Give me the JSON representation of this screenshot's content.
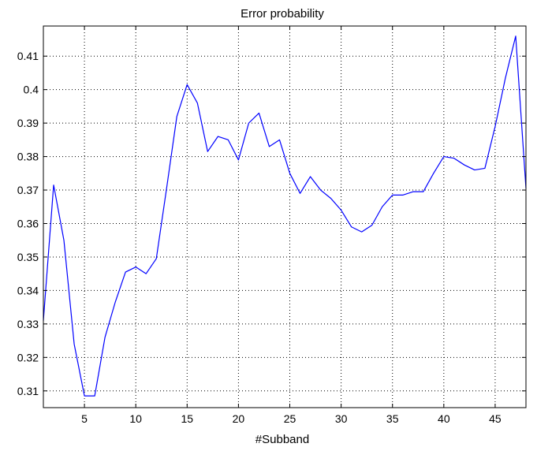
{
  "chart_data": {
    "type": "line",
    "title": "Error probability",
    "xlabel": "#Subband",
    "ylabel": "",
    "xlim": [
      1,
      48
    ],
    "ylim": [
      0.305,
      0.419
    ],
    "grid": true,
    "xticks": [
      5,
      10,
      15,
      20,
      25,
      30,
      35,
      40,
      45
    ],
    "yticks": [
      0.31,
      0.32,
      0.33,
      0.34,
      0.35,
      0.36,
      0.37,
      0.38,
      0.39,
      0.4,
      0.41
    ],
    "ytick_labels": [
      "0.31",
      "0.32",
      "0.33",
      "0.34",
      "0.35",
      "0.36",
      "0.37",
      "0.38",
      "0.39",
      "0.4",
      "0.41"
    ],
    "series": [
      {
        "color": "#0000ff",
        "x": [
          1,
          2,
          3,
          4,
          5,
          6,
          7,
          8,
          9,
          10,
          11,
          12,
          13,
          14,
          15,
          16,
          17,
          18,
          19,
          20,
          21,
          22,
          23,
          24,
          25,
          26,
          27,
          28,
          29,
          30,
          31,
          32,
          33,
          34,
          35,
          36,
          37,
          38,
          39,
          40,
          41,
          42,
          43,
          44,
          45,
          46,
          47,
          48
        ],
        "values": [
          0.331,
          0.3715,
          0.355,
          0.324,
          0.3085,
          0.3085,
          0.326,
          0.3365,
          0.3455,
          0.347,
          0.345,
          0.3495,
          0.3705,
          0.392,
          0.4015,
          0.396,
          0.3815,
          0.386,
          0.385,
          0.379,
          0.39,
          0.393,
          0.383,
          0.385,
          0.375,
          0.369,
          0.374,
          0.37,
          0.3675,
          0.364,
          0.359,
          0.3575,
          0.3595,
          0.365,
          0.3685,
          0.3685,
          0.3695,
          0.3695,
          0.375,
          0.38,
          0.3795,
          0.3775,
          0.376,
          0.3765,
          0.389,
          0.4035,
          0.416,
          0.3705
        ]
      }
    ]
  }
}
